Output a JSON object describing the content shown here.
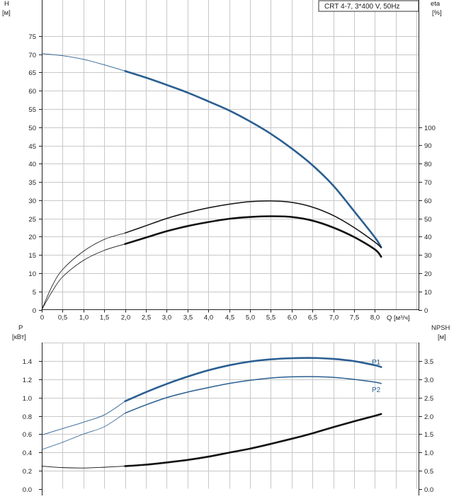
{
  "chart_data": [
    {
      "type": "line",
      "title": "CRT 4-7, 3*400 V, 50Hz",
      "xlabel": "Q [м³/ч]",
      "x_ticks": [
        "0",
        "0,5",
        "1,0",
        "1,5",
        "2,0",
        "2,5",
        "3,0",
        "3,5",
        "4,0",
        "4,5",
        "5,0",
        "5,5",
        "6,0",
        "6,5",
        "7,0",
        "7,5",
        "8,0"
      ],
      "x_unit_label": "Q [м³/ч]",
      "xlim": [
        0,
        8.5
      ],
      "left_axis": {
        "label": "H",
        "unit": "[м]",
        "ylim": [
          0,
          79
        ],
        "ticks": [
          0,
          5,
          10,
          15,
          20,
          25,
          30,
          35,
          40,
          45,
          50,
          55,
          60,
          65,
          70,
          75
        ]
      },
      "right_axis": {
        "label": "eta",
        "unit": "[%]",
        "ylim": [
          0,
          158
        ],
        "ticks": [
          0,
          10,
          20,
          30,
          40,
          50,
          60,
          70,
          80,
          90,
          100
        ]
      },
      "grid": true,
      "series": [
        {
          "axis": "left",
          "color": "#2a5f91",
          "x": [
            0,
            0.5,
            1,
            1.5,
            2,
            2.5,
            3,
            3.5,
            4,
            4.5,
            5,
            5.5,
            6,
            6.5,
            7,
            7.5,
            8,
            8.15
          ],
          "y": [
            70.2,
            69.6,
            68.6,
            67.1,
            65.4,
            63.6,
            61.6,
            59.5,
            57.1,
            54.6,
            51.6,
            48.2,
            44.2,
            39.6,
            34.0,
            27.0,
            19.8,
            17.1
          ],
          "full_from": 2
        },
        {
          "axis": "right",
          "color": "#111111",
          "x": [
            0,
            0.25,
            0.5,
            1,
            1.5,
            2,
            2.5,
            3,
            3.5,
            4,
            4.5,
            5,
            5.5,
            6,
            6.5,
            7,
            7.5,
            8,
            8.15
          ],
          "y": [
            0,
            13,
            22,
            32,
            38.5,
            42,
            46,
            50,
            53.2,
            55.8,
            57.8,
            59.2,
            59.6,
            58.8,
            56.2,
            51.6,
            45,
            37,
            34
          ],
          "full_from": 2
        },
        {
          "axis": "right",
          "color": "#111111",
          "x": [
            0,
            0.25,
            0.5,
            1,
            1.5,
            2,
            2.5,
            3,
            3.5,
            4,
            4.5,
            5,
            5.5,
            6,
            6.5,
            7,
            7.5,
            8,
            8.15
          ],
          "y": [
            0,
            10,
            18,
            27,
            32.5,
            36,
            39.5,
            43,
            45.8,
            48,
            49.8,
            50.8,
            51.2,
            50.8,
            48.8,
            45,
            39.8,
            33,
            29
          ],
          "full_from": 2
        }
      ]
    },
    {
      "type": "line",
      "left_axis": {
        "label": "P",
        "unit": "[кВт]",
        "ylim": [
          0,
          1.58
        ],
        "ticks": [
          "0.0",
          "0.2",
          "0.4",
          "0.6",
          "0.8",
          "1.0",
          "1.2",
          "1.4"
        ]
      },
      "right_axis": {
        "label": "NPSH",
        "unit": "[м]",
        "ylim": [
          0,
          3.95
        ],
        "ticks": [
          "0.0",
          "0.5",
          "1.0",
          "1.5",
          "2.0",
          "2.5",
          "3.0",
          "3.5"
        ]
      },
      "xlim": [
        0,
        8.5
      ],
      "grid": true,
      "series": [
        {
          "name": "P1",
          "axis": "left",
          "color": "#2a5f91",
          "x": [
            0,
            0.5,
            1,
            1.5,
            2,
            2.5,
            3,
            3.5,
            4,
            4.5,
            5,
            5.5,
            6,
            6.5,
            7,
            7.5,
            8,
            8.15
          ],
          "y": [
            0.59,
            0.66,
            0.73,
            0.81,
            0.96,
            1.06,
            1.15,
            1.23,
            1.3,
            1.355,
            1.395,
            1.42,
            1.432,
            1.435,
            1.425,
            1.4,
            1.355,
            1.335
          ],
          "full_from": 2
        },
        {
          "name": "P2",
          "axis": "left",
          "color": "#2a5f91",
          "x": [
            0,
            0.5,
            1,
            1.5,
            2,
            2.5,
            3,
            3.5,
            4,
            4.5,
            5,
            5.5,
            6,
            6.5,
            7,
            7.5,
            8,
            8.15
          ],
          "y": [
            0.43,
            0.51,
            0.6,
            0.68,
            0.83,
            0.92,
            1.0,
            1.06,
            1.11,
            1.155,
            1.19,
            1.215,
            1.228,
            1.23,
            1.222,
            1.2,
            1.17,
            1.155
          ],
          "full_from": 2
        },
        {
          "axis": "right",
          "color": "#111111",
          "x": [
            0,
            0.5,
            1,
            1.5,
            2,
            2.5,
            3,
            3.5,
            4,
            4.5,
            5,
            5.5,
            6,
            6.5,
            7,
            7.5,
            8,
            8.15
          ],
          "y": [
            0.62,
            0.58,
            0.57,
            0.59,
            0.62,
            0.66,
            0.72,
            0.79,
            0.88,
            0.99,
            1.1,
            1.23,
            1.37,
            1.52,
            1.69,
            1.85,
            2.0,
            2.05
          ],
          "full_from": 2
        }
      ]
    }
  ]
}
